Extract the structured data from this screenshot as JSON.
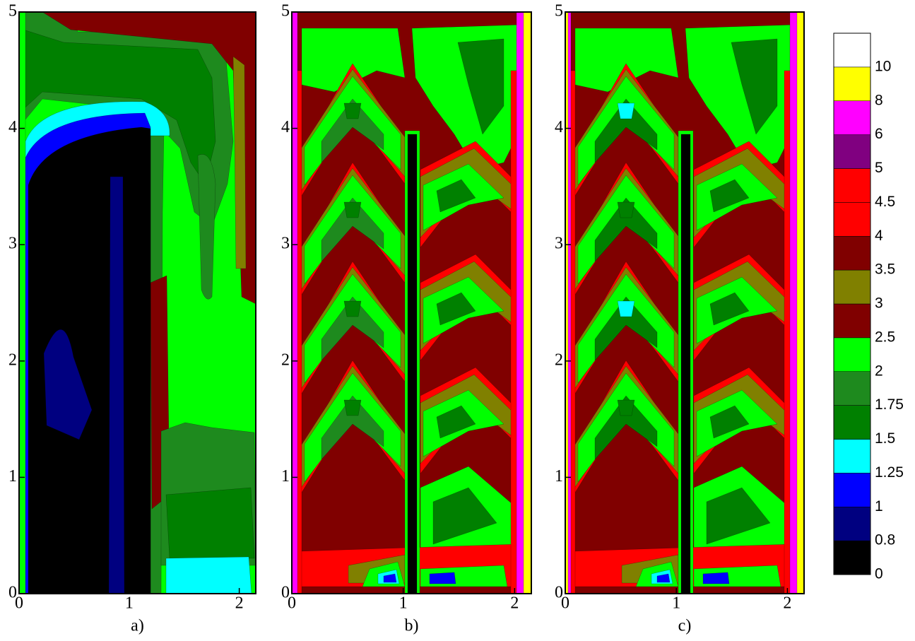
{
  "chart_data": {
    "type": "contour",
    "panels": [
      {
        "label": "a)",
        "xlim": [
          0,
          2.15
        ],
        "ylim": [
          0,
          5
        ],
        "xticks": [
          0,
          1,
          2
        ],
        "yticks": [
          0,
          1,
          2,
          3,
          4,
          5
        ]
      },
      {
        "label": "b)",
        "xlim": [
          0,
          2.15
        ],
        "ylim": [
          0,
          5
        ],
        "xticks": [
          0,
          1,
          2
        ],
        "yticks": [
          0,
          1,
          2,
          3,
          4,
          5
        ]
      },
      {
        "label": "c)",
        "xlim": [
          0,
          2.15
        ],
        "ylim": [
          0,
          5
        ],
        "xticks": [
          0,
          1,
          2
        ],
        "yticks": [
          0,
          1,
          2,
          3,
          4,
          5
        ]
      }
    ],
    "colorbar": {
      "levels": [
        0,
        0.8,
        1,
        1.25,
        1.5,
        1.75,
        2,
        2.5,
        3,
        3.5,
        4,
        4.5,
        5,
        6,
        8,
        10
      ],
      "colors": [
        "#000000",
        "#000080",
        "#0000ff",
        "#00ffff",
        "#008000",
        "#1e8a1e",
        "#00ff00",
        "#800000",
        "#808000",
        "#800000",
        "#ff0000",
        "#ff0000",
        "#800080",
        "#ff00ff",
        "#ffff00",
        "#ffffff"
      ]
    }
  }
}
